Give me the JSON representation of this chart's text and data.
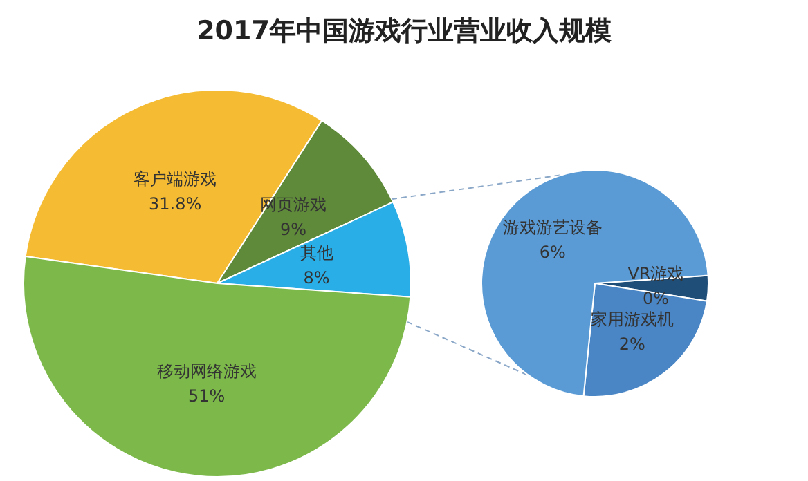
{
  "chart_data": [
    {
      "type": "pie",
      "title": "2017年中国游戏行业营业收入规模",
      "categories": [
        "客户端游戏",
        "网页游戏",
        "其他",
        "移动网络游戏"
      ],
      "values": [
        31.8,
        9,
        8,
        51
      ],
      "value_labels": [
        "31.8%",
        "9%",
        "8%",
        "51%"
      ],
      "colors": [
        "#f5bc33",
        "#5f8a3a",
        "#29aee8",
        "#7cb94a"
      ],
      "data_labels": true,
      "legend": false
    },
    {
      "type": "pie",
      "categories": [
        "VR游戏",
        "家用游戏机",
        "游戏游艺设备"
      ],
      "values": [
        0.3,
        2,
        6
      ],
      "value_labels": [
        "0%",
        "2%",
        "6%"
      ],
      "colors": [
        "#1f4e79",
        "#4a86c5",
        "#5b9bd5"
      ],
      "data_labels": true,
      "legend": false
    }
  ]
}
